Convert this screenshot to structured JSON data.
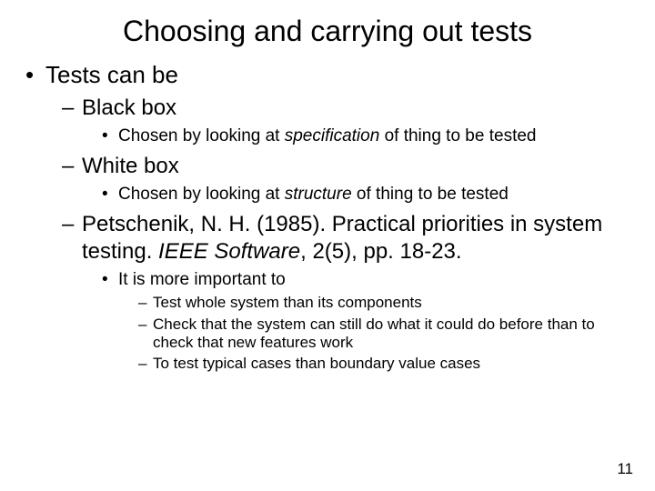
{
  "title": "Choosing and carrying out tests",
  "lvl1_label": "Tests can be",
  "blackbox": {
    "label": "Black box",
    "detail_pre": "Chosen by looking at ",
    "detail_em": "specification",
    "detail_post": " of thing to be tested"
  },
  "whitebox": {
    "label": "White box",
    "detail_pre": "Chosen by looking at ",
    "detail_em": "structure",
    "detail_post": " of thing to be tested"
  },
  "citation": {
    "pre": "Petschenik, N. H. (1985). Practical priorities in system testing. ",
    "em": "IEEE Software",
    "post": ", 2(5), pp. 18-23."
  },
  "priorities": {
    "intro": "It is more important to",
    "items": [
      "Test whole system than its components",
      "Check that the system can still do what it could do before than to check that new features work",
      "To test typical cases than boundary value cases"
    ]
  },
  "page_number": "11"
}
